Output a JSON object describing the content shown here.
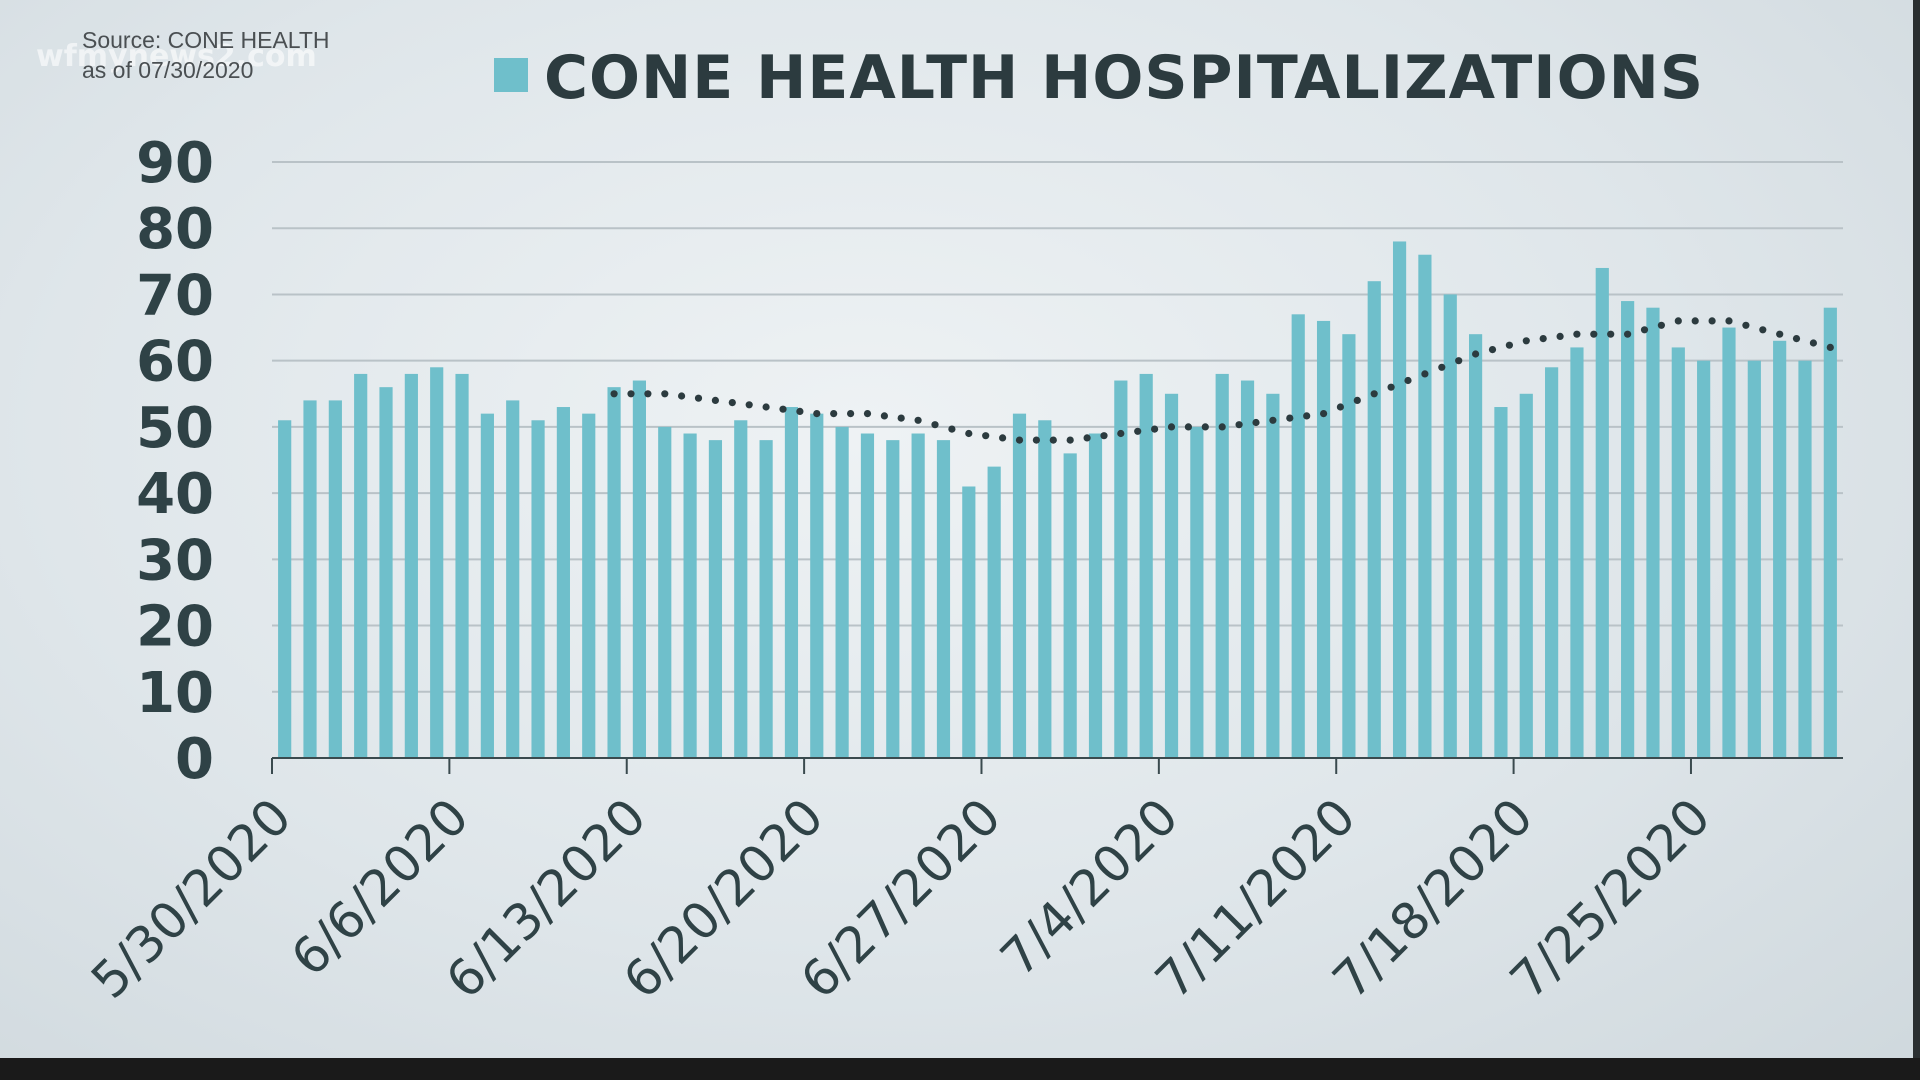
{
  "watermark": "wfmynews2.com",
  "source": {
    "line1": "Source: CONE HEALTH",
    "line2": "as of 07/30/2020"
  },
  "colors": {
    "bar": "#6fbfcb",
    "trend": "#2c3b3f",
    "text": "#2f4246"
  },
  "chart_data": {
    "type": "bar",
    "title": "CONE HEALTH HOSPITALIZATIONS",
    "ylim": [
      0,
      90
    ],
    "yticks": [
      0,
      10,
      20,
      30,
      40,
      50,
      60,
      70,
      80,
      90
    ],
    "grid": true,
    "legend": "top",
    "x_tick_labels": [
      "5/30/2020",
      "6/6/2020",
      "6/13/2020",
      "6/20/2020",
      "6/27/2020",
      "7/4/2020",
      "7/11/2020",
      "7/18/2020",
      "7/25/2020"
    ],
    "categories": [
      "5/30/2020",
      "5/31/2020",
      "6/1/2020",
      "6/2/2020",
      "6/3/2020",
      "6/4/2020",
      "6/5/2020",
      "6/6/2020",
      "6/7/2020",
      "6/8/2020",
      "6/9/2020",
      "6/10/2020",
      "6/11/2020",
      "6/12/2020",
      "6/13/2020",
      "6/14/2020",
      "6/15/2020",
      "6/16/2020",
      "6/17/2020",
      "6/18/2020",
      "6/19/2020",
      "6/20/2020",
      "6/21/2020",
      "6/22/2020",
      "6/23/2020",
      "6/24/2020",
      "6/25/2020",
      "6/26/2020",
      "6/27/2020",
      "6/28/2020",
      "6/29/2020",
      "6/30/2020",
      "7/1/2020",
      "7/2/2020",
      "7/3/2020",
      "7/4/2020",
      "7/5/2020",
      "7/6/2020",
      "7/7/2020",
      "7/8/2020",
      "7/9/2020",
      "7/10/2020",
      "7/11/2020",
      "7/12/2020",
      "7/13/2020",
      "7/14/2020",
      "7/15/2020",
      "7/16/2020",
      "7/17/2020",
      "7/18/2020",
      "7/19/2020",
      "7/20/2020",
      "7/21/2020",
      "7/22/2020",
      "7/23/2020",
      "7/24/2020",
      "7/25/2020",
      "7/26/2020",
      "7/27/2020",
      "7/28/2020",
      "7/29/2020",
      "7/30/2020"
    ],
    "series": [
      {
        "name": "CONE HEALTH HOSPITALIZATIONS",
        "values": [
          51,
          54,
          54,
          58,
          56,
          58,
          59,
          58,
          52,
          54,
          51,
          53,
          52,
          56,
          57,
          50,
          49,
          48,
          51,
          48,
          53,
          52,
          50,
          49,
          48,
          49,
          48,
          41,
          44,
          52,
          51,
          46,
          49,
          57,
          58,
          55,
          50,
          58,
          57,
          55,
          67,
          66,
          64,
          72,
          78,
          76,
          70,
          64,
          53,
          55,
          59,
          62,
          74,
          69,
          68,
          62,
          60,
          65,
          60,
          63,
          60,
          68
        ]
      }
    ],
    "trendline": {
      "style": "dotted",
      "x": [
        "6/12/2020",
        "6/14/2020",
        "6/16/2020",
        "6/18/2020",
        "6/20/2020",
        "6/22/2020",
        "6/24/2020",
        "6/26/2020",
        "6/28/2020",
        "6/30/2020",
        "7/2/2020",
        "7/4/2020",
        "7/6/2020",
        "7/8/2020",
        "7/10/2020",
        "7/12/2020",
        "7/14/2020",
        "7/16/2020",
        "7/18/2020",
        "7/20/2020",
        "7/22/2020",
        "7/24/2020",
        "7/26/2020",
        "7/28/2020",
        "7/30/2020"
      ],
      "values": [
        55,
        55,
        54,
        53,
        52,
        52,
        51,
        49,
        48,
        48,
        49,
        50,
        50,
        51,
        52,
        55,
        58,
        61,
        63,
        64,
        64,
        66,
        66,
        64,
        62
      ]
    }
  }
}
